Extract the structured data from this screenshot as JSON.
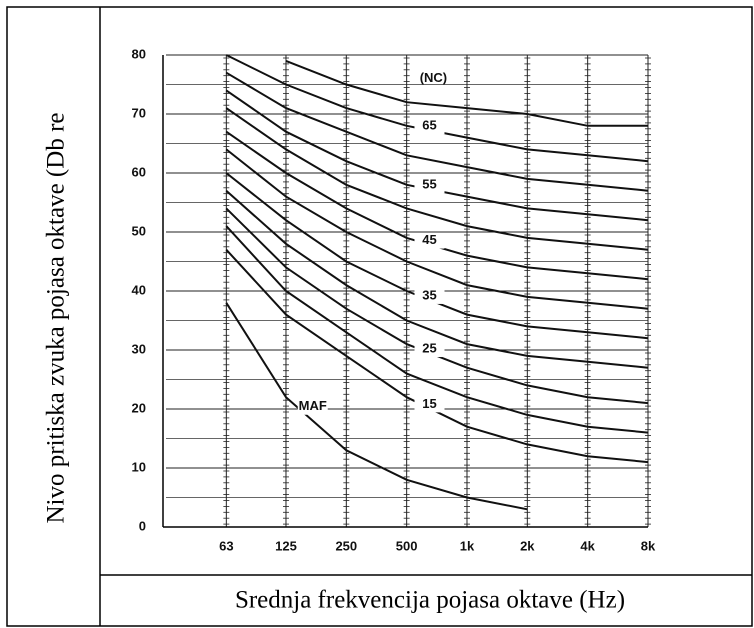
{
  "chart_data": {
    "type": "line",
    "xlabel": "Srednja frekvencija pojasa oktave (Hz)",
    "ylabel": "Nivo pritiska zvuka pojasa oktave (Db re",
    "annotations": [
      "(NC)"
    ],
    "x": [
      63,
      125,
      250,
      500,
      1000,
      2000,
      4000,
      8000
    ],
    "xscale": "log",
    "xlim": [
      31.5,
      8000
    ],
    "xticks": [
      63,
      125,
      250,
      500,
      {
        "value": 1000,
        "label": "1k"
      },
      {
        "value": 2000,
        "label": "2k"
      },
      {
        "value": 4000,
        "label": "4k"
      },
      {
        "value": 8000,
        "label": "8k"
      }
    ],
    "ylim": [
      0,
      80
    ],
    "yticks": [
      0,
      10,
      20,
      30,
      40,
      50,
      60,
      70,
      80
    ],
    "yminor": [
      5,
      15,
      25,
      35,
      45,
      55,
      65,
      75
    ],
    "grid": true,
    "color": "#111111",
    "series": [
      {
        "values": [
          null,
          79,
          75,
          72,
          71,
          70,
          68,
          68
        ]
      },
      {
        "name": "65",
        "values": [
          80,
          75,
          71,
          68,
          66,
          64,
          63,
          62
        ]
      },
      {
        "values": [
          77,
          71,
          67,
          63,
          61,
          59,
          58,
          57
        ]
      },
      {
        "name": "55",
        "values": [
          74,
          67,
          62,
          58,
          56,
          54,
          53,
          52
        ]
      },
      {
        "values": [
          71,
          64,
          58,
          54,
          51,
          49,
          48,
          47
        ]
      },
      {
        "name": "45",
        "values": [
          67,
          60,
          54,
          49,
          46,
          44,
          43,
          42
        ]
      },
      {
        "values": [
          64,
          56,
          50,
          45,
          41,
          39,
          38,
          37
        ]
      },
      {
        "name": "35",
        "values": [
          60,
          52,
          45,
          40,
          36,
          34,
          33,
          32
        ]
      },
      {
        "values": [
          57,
          48,
          41,
          35,
          31,
          29,
          28,
          27
        ]
      },
      {
        "name": "25",
        "values": [
          54,
          44,
          37,
          31,
          27,
          24,
          22,
          21
        ]
      },
      {
        "values": [
          51,
          40,
          33,
          26,
          22,
          19,
          17,
          16
        ]
      },
      {
        "name": "15",
        "values": [
          47,
          36,
          29,
          22,
          17,
          14,
          12,
          11
        ]
      },
      {
        "name": "MAF",
        "values": [
          38,
          22,
          13,
          8,
          5,
          3,
          null,
          null
        ]
      }
    ]
  }
}
